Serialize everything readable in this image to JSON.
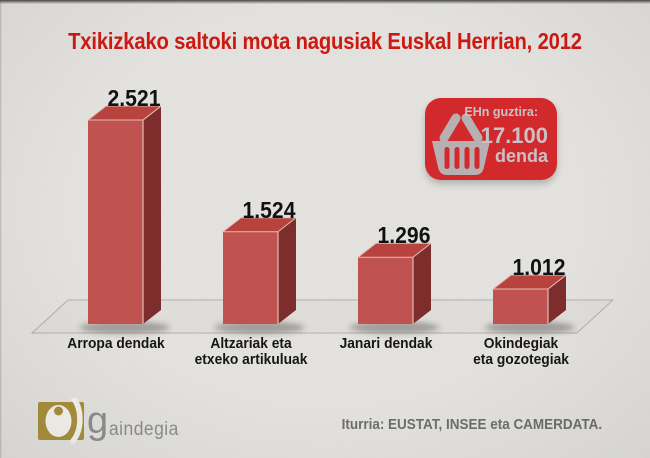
{
  "title": {
    "text": "Txikizkako saltoki mota nagusiak Euskal Herrian, 2012",
    "color": "#ce1911"
  },
  "chart_data": {
    "type": "bar",
    "title": "Txikizkako saltoki mota nagusiak Euskal Herrian, 2012",
    "categories": [
      "Arropa dendak",
      "Altzariak eta etxeko artikuluak",
      "Janari dendak",
      "Okindegiak eta gozotegiak"
    ],
    "category_lines": [
      [
        "Arropa dendak"
      ],
      [
        "Altzariak eta",
        "etxeko artikuluak"
      ],
      [
        "Janari dendak"
      ],
      [
        "Okindegiak",
        "eta gozotegiak"
      ]
    ],
    "values": [
      2521,
      1524,
      1296,
      1012
    ],
    "value_labels": [
      "2.521",
      "1.524",
      "1.296",
      "1.012"
    ],
    "unit": "denda",
    "total": {
      "label": "EHn guztira:",
      "value": 17100,
      "value_label": "17.100",
      "unit": "denda"
    },
    "legend": null,
    "grid": false,
    "style": "3d-columns",
    "bar_colors": {
      "front": "#c0534f",
      "side": "#7d2d2c",
      "top": "#b7423e",
      "edge_highlight": "#e2bcb6"
    }
  },
  "badge": {
    "heading": "EHn guztira:",
    "value": "17.100",
    "unit": "denda",
    "bg_color": "#d2292d",
    "icon_color": "#b7b0b2",
    "text_color": "#c9c2c4",
    "icon": "shopping-basket-icon"
  },
  "footer": {
    "logo_text_large": "g",
    "logo_text_small": "aindegia",
    "logo_gold": "#a7903d",
    "source": "Iturria: EUSTAT, INSEE eta CAMERDATA."
  }
}
